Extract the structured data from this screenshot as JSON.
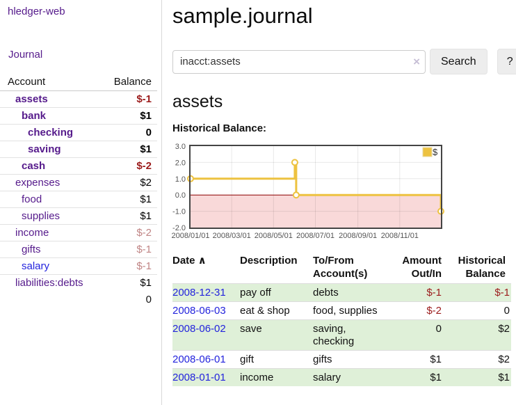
{
  "app": {
    "brand": "hledger-web"
  },
  "sidebar": {
    "journal_link": "Journal",
    "accounts_table": {
      "account_header": "Account",
      "balance_header": "Balance",
      "accounts": [
        {
          "name": "assets",
          "depth": 1,
          "bold": true,
          "balance": "$-1",
          "balance_style": "neg-strong"
        },
        {
          "name": "bank",
          "depth": 2,
          "bold": true,
          "balance": "$1",
          "balance_style": "pos"
        },
        {
          "name": "checking",
          "depth": 3,
          "bold": true,
          "balance": "0",
          "balance_style": "pos"
        },
        {
          "name": "saving",
          "depth": 3,
          "bold": true,
          "balance": "$1",
          "balance_style": "pos"
        },
        {
          "name": "cash",
          "depth": 2,
          "bold": true,
          "balance": "$-2",
          "balance_style": "neg-strong"
        },
        {
          "name": "expenses",
          "depth": 1,
          "bold": false,
          "balance": "$2",
          "balance_style": "pos"
        },
        {
          "name": "food",
          "depth": 2,
          "bold": false,
          "balance": "$1",
          "balance_style": "pos"
        },
        {
          "name": "supplies",
          "depth": 2,
          "bold": false,
          "balance": "$1",
          "balance_style": "pos"
        },
        {
          "name": "income",
          "depth": 1,
          "bold": false,
          "balance": "$-2",
          "balance_style": "neg-muted"
        },
        {
          "name": "gifts",
          "depth": 2,
          "bold": false,
          "balance": "$-1",
          "balance_style": "neg-muted"
        },
        {
          "name": "salary",
          "depth": 2,
          "bold": false,
          "balance": "$-1",
          "balance_style": "neg-muted",
          "link_state": "unvisited"
        },
        {
          "name": "liabilities:debts",
          "depth": 1,
          "bold": false,
          "balance": "$1",
          "balance_style": "pos"
        }
      ],
      "total": "0"
    }
  },
  "header": {
    "title": "sample.journal"
  },
  "search": {
    "value": "inacct:assets",
    "clear_icon": "×",
    "button_label": "Search",
    "help_label": "?"
  },
  "account_page": {
    "heading": "assets",
    "chart_label": "Historical Balance:"
  },
  "chart_data": {
    "type": "line",
    "title": "Historical Balance:",
    "step": true,
    "series": [
      {
        "name": "$",
        "color": "#edc240",
        "points": [
          {
            "date": "2008-01-01",
            "day": 0,
            "value": 1
          },
          {
            "date": "2008-06-01",
            "day": 152,
            "value": 2
          },
          {
            "date": "2008-06-03",
            "day": 154,
            "value": 0
          },
          {
            "date": "2008-12-31",
            "day": 365,
            "value": -1
          }
        ]
      }
    ],
    "x_ticks": [
      {
        "label": "2008/01/01",
        "day": 0
      },
      {
        "label": "2008/03/01",
        "day": 60
      },
      {
        "label": "2008/05/01",
        "day": 121
      },
      {
        "label": "2008/07/01",
        "day": 182
      },
      {
        "label": "2008/09/01",
        "day": 244
      },
      {
        "label": "2008/11/01",
        "day": 305
      }
    ],
    "x_range_days": [
      0,
      365
    ],
    "y_ticks": [
      -2,
      -1,
      0,
      1,
      2,
      3
    ],
    "ylim": [
      -2,
      3
    ],
    "grid": true,
    "legend_position": "top-right",
    "negative_region_color": "#f9d9d9",
    "zero_line_color": "#8b0000",
    "plot_border_color": "#444444"
  },
  "register": {
    "headers": [
      {
        "lines": [
          "Date"
        ],
        "sort_icon": "∧",
        "align": "left"
      },
      {
        "lines": [
          "Description"
        ],
        "align": "left"
      },
      {
        "lines": [
          "To/From",
          "Account(s)"
        ],
        "align": "left"
      },
      {
        "lines": [
          "Amount",
          "Out/In"
        ],
        "align": "right"
      },
      {
        "lines": [
          "Historical",
          "Balance"
        ],
        "align": "right"
      }
    ],
    "rows": [
      {
        "date": "2008-12-31",
        "description": "pay off",
        "accounts": "debts",
        "amount": "$-1",
        "amount_negative": true,
        "balance": "$-1",
        "balance_negative": true
      },
      {
        "date": "2008-06-03",
        "description": "eat & shop",
        "accounts": "food, supplies",
        "amount": "$-2",
        "amount_negative": true,
        "balance": "0",
        "balance_negative": false
      },
      {
        "date": "2008-06-02",
        "description": "save",
        "accounts": "saving, checking",
        "amount": "0",
        "amount_negative": false,
        "balance": "$2",
        "balance_negative": false
      },
      {
        "date": "2008-06-01",
        "description": "gift",
        "accounts": "gifts",
        "amount": "$1",
        "amount_negative": false,
        "balance": "$2",
        "balance_negative": false
      },
      {
        "date": "2008-01-01",
        "description": "income",
        "accounts": "salary",
        "amount": "$1",
        "amount_negative": false,
        "balance": "$1",
        "balance_negative": false
      }
    ]
  },
  "colors": {
    "purple": "#551a8b",
    "blue": "#2323dd",
    "neg": "#9b1b1b",
    "neg_muted": "#c08585",
    "row_green": "#dff0d8",
    "gold": "#edc240",
    "pink": "#f9d9d9",
    "zero": "#8b0000"
  }
}
